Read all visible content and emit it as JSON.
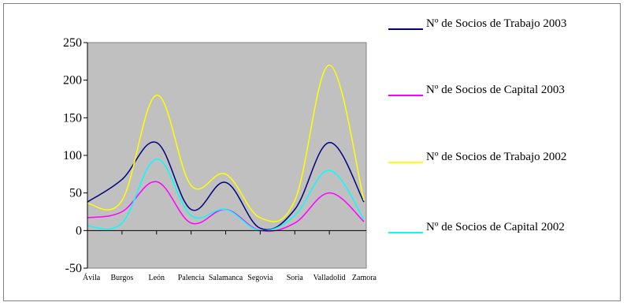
{
  "chart_data": {
    "type": "line",
    "categories": [
      "Ávila",
      "Burgos",
      "León",
      "Palencia",
      "Salamanca",
      "Segovia",
      "Soria",
      "Valladolid",
      "Zamora"
    ],
    "ylim": [
      -50,
      250
    ],
    "yticks": [
      "250",
      "200",
      "150",
      "100",
      "50",
      "0",
      "-50"
    ],
    "ytick_values": [
      250,
      200,
      150,
      100,
      50,
      0,
      -50
    ],
    "plot_background": "#c0c0c0",
    "grid": false,
    "legend_position": "right",
    "series": [
      {
        "name": "Nº de Socios de Trabajo 2003",
        "color": "#000080",
        "values": [
          38,
          68,
          117,
          28,
          64,
          3,
          28,
          117,
          38
        ]
      },
      {
        "name": "Nº de Socios de Capital 2003",
        "color": "#ff00ff",
        "values": [
          17,
          25,
          65,
          10,
          28,
          0,
          10,
          50,
          12
        ]
      },
      {
        "name": "Nº de Socios de Trabajo 2002",
        "color": "#ffff00",
        "values": [
          36,
          40,
          180,
          60,
          75,
          17,
          40,
          220,
          40
        ]
      },
      {
        "name": "Nº de Socios de Capital 2002",
        "color": "#00ffff",
        "values": [
          6,
          10,
          95,
          20,
          28,
          0,
          20,
          80,
          15
        ]
      }
    ]
  }
}
